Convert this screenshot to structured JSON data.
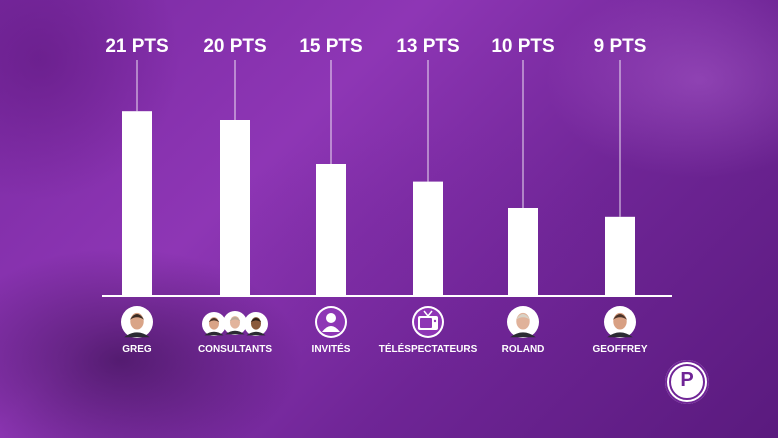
{
  "chart_data": {
    "type": "bar",
    "categories": [
      "GREG",
      "CONSULTANTS",
      "INVITÉS",
      "TÉLÉSPECTATEURS",
      "ROLAND",
      "GEOFFREY"
    ],
    "values": [
      21,
      20,
      15,
      13,
      10,
      9
    ],
    "value_labels": [
      "21 PTS",
      "20 PTS",
      "15 PTS",
      "13 PTS",
      "10 PTS",
      "9 PTS"
    ],
    "ylim": [
      0,
      25
    ],
    "grid": false,
    "icons": [
      "greg-portrait-icon",
      "consultants-portraits-icon",
      "guest-silhouette-icon",
      "television-icon",
      "roland-portrait-icon",
      "geoffrey-portrait-icon"
    ]
  },
  "colors": {
    "bar": "#ffffff",
    "accent": "#8e36b5",
    "background": "#7a2aa2"
  },
  "logo": {
    "glyph": "P",
    "icon": "les-pucealistes-logo-icon"
  }
}
